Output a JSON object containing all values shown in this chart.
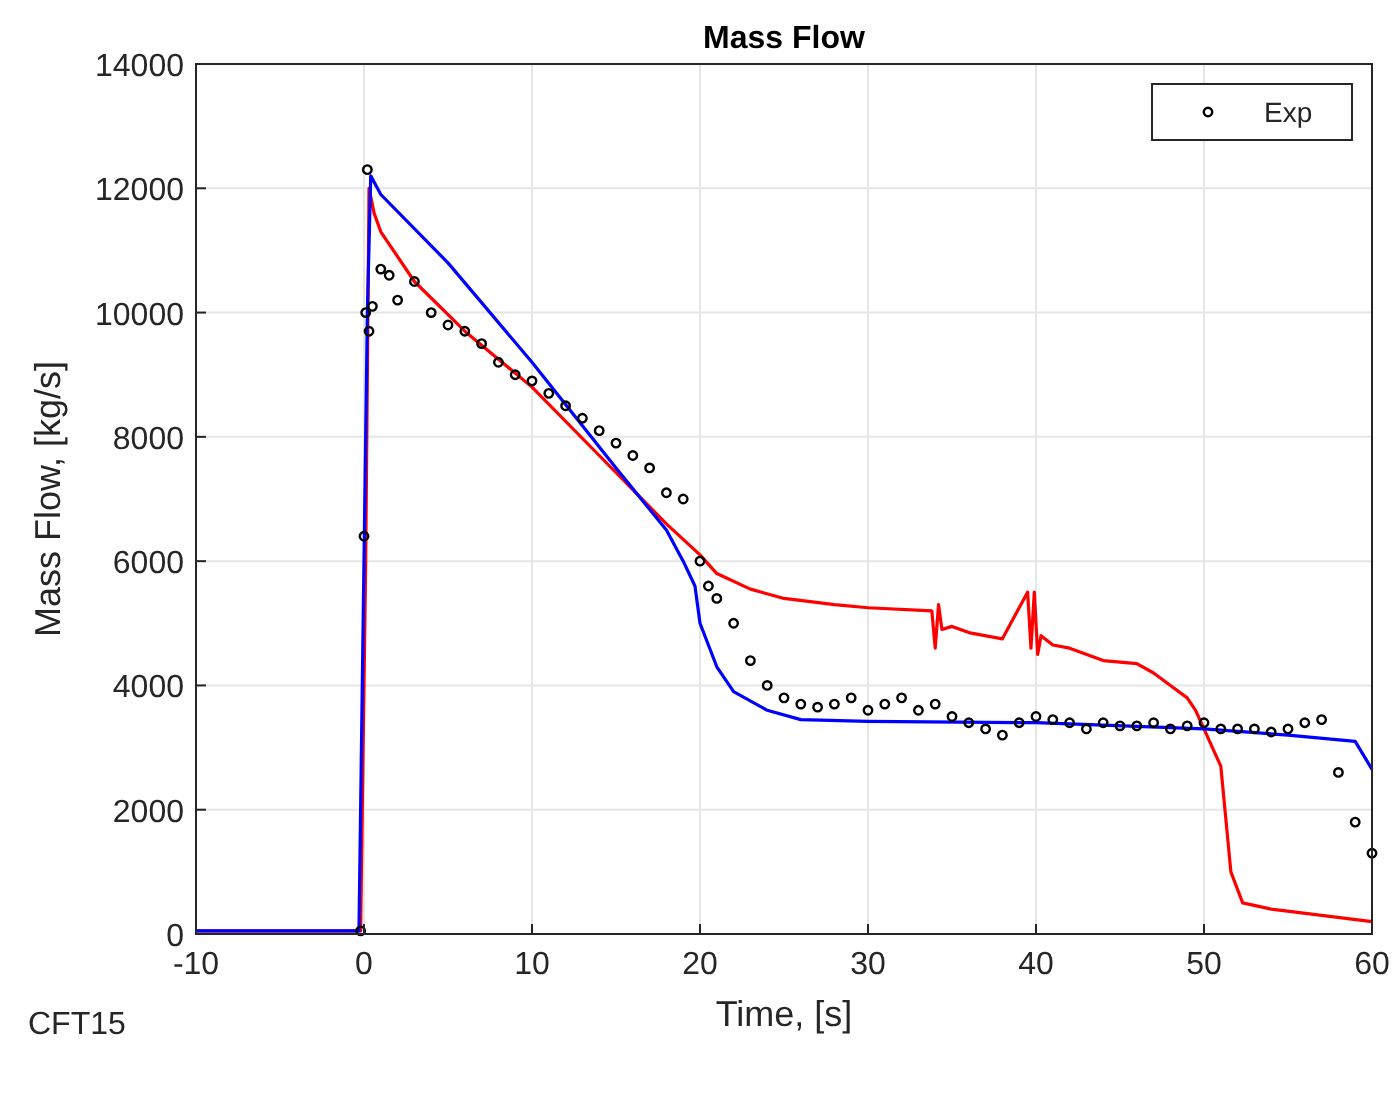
{
  "chart_data": {
    "type": "line",
    "title": "Mass Flow",
    "xlabel": "Time, [s]",
    "ylabel": "Mass Flow, [kg/s]",
    "xlim": [
      -10,
      60
    ],
    "xticks": [
      -10,
      0,
      10,
      20,
      30,
      40,
      50,
      60
    ],
    "ylim": [
      0,
      14000
    ],
    "yticks": [
      0,
      2000,
      4000,
      6000,
      8000,
      10000,
      12000,
      14000
    ],
    "grid": true,
    "legend": "top right",
    "annotations": [
      "CFT15"
    ],
    "series": [
      {
        "color": "#ff0000",
        "x": [
          -10,
          -0.2,
          0.1,
          0.3,
          0.6,
          1,
          3,
          6,
          10,
          14,
          18,
          20,
          21,
          23,
          25,
          28,
          30,
          33.8,
          34,
          34.2,
          34.4,
          35,
          36,
          38,
          39.5,
          39.7,
          39.9,
          40.1,
          40.3,
          41,
          42,
          44,
          46,
          47,
          48,
          49,
          49.5,
          50,
          50.5,
          51,
          51.6,
          52.3,
          54,
          57,
          60
        ],
        "values": [
          50,
          50,
          6000,
          12000,
          11600,
          11300,
          10500,
          9700,
          8800,
          7700,
          6600,
          6100,
          5800,
          5550,
          5400,
          5300,
          5250,
          5200,
          4600,
          5300,
          4900,
          4950,
          4850,
          4750,
          5500,
          4600,
          5500,
          4500,
          4800,
          4650,
          4600,
          4400,
          4350,
          4200,
          4000,
          3800,
          3600,
          3300,
          3000,
          2700,
          1000,
          500,
          400,
          300,
          200
        ]
      },
      {
        "color": "#0000ff",
        "x": [
          -10,
          -0.3,
          0.2,
          0.4,
          1,
          5,
          10,
          15,
          18,
          19,
          19.7,
          20,
          21,
          22,
          24,
          26,
          30,
          40,
          50,
          55,
          59,
          60
        ],
        "values": [
          50,
          50,
          10000,
          12200,
          11900,
          10800,
          9200,
          7500,
          6500,
          6000,
          5600,
          5000,
          4300,
          3900,
          3600,
          3450,
          3420,
          3400,
          3300,
          3200,
          3100,
          2650
        ]
      },
      {
        "type": "scatter",
        "name": "Exp",
        "color": "#000000",
        "marker": "circle",
        "x": [
          -0.2,
          0,
          0.1,
          0.2,
          0.3,
          0.5,
          1,
          1.5,
          2,
          3,
          4,
          5,
          6,
          7,
          8,
          9,
          10,
          11,
          12,
          13,
          14,
          15,
          16,
          17,
          18,
          19,
          20,
          20.5,
          21,
          22,
          23,
          24,
          25,
          26,
          27,
          28,
          29,
          30,
          31,
          32,
          33,
          34,
          35,
          36,
          37,
          38,
          39,
          40,
          41,
          42,
          43,
          44,
          45,
          46,
          47,
          48,
          49,
          50,
          51,
          52,
          53,
          54,
          55,
          56,
          57,
          58,
          59,
          60
        ],
        "values": [
          50,
          6400,
          10000,
          12300,
          9700,
          10100,
          10700,
          10600,
          10200,
          10500,
          10000,
          9800,
          9700,
          9500,
          9200,
          9000,
          8900,
          8700,
          8500,
          8300,
          8100,
          7900,
          7700,
          7500,
          7100,
          7000,
          6000,
          5600,
          5400,
          5000,
          4400,
          4000,
          3800,
          3700,
          3650,
          3700,
          3800,
          3600,
          3700,
          3800,
          3600,
          3700,
          3500,
          3400,
          3300,
          3200,
          3400,
          3500,
          3450,
          3400,
          3300,
          3400,
          3350,
          3350,
          3400,
          3300,
          3350,
          3400,
          3300,
          3300,
          3300,
          3250,
          3300,
          3400,
          3450,
          2600,
          1800,
          1300
        ]
      }
    ]
  }
}
